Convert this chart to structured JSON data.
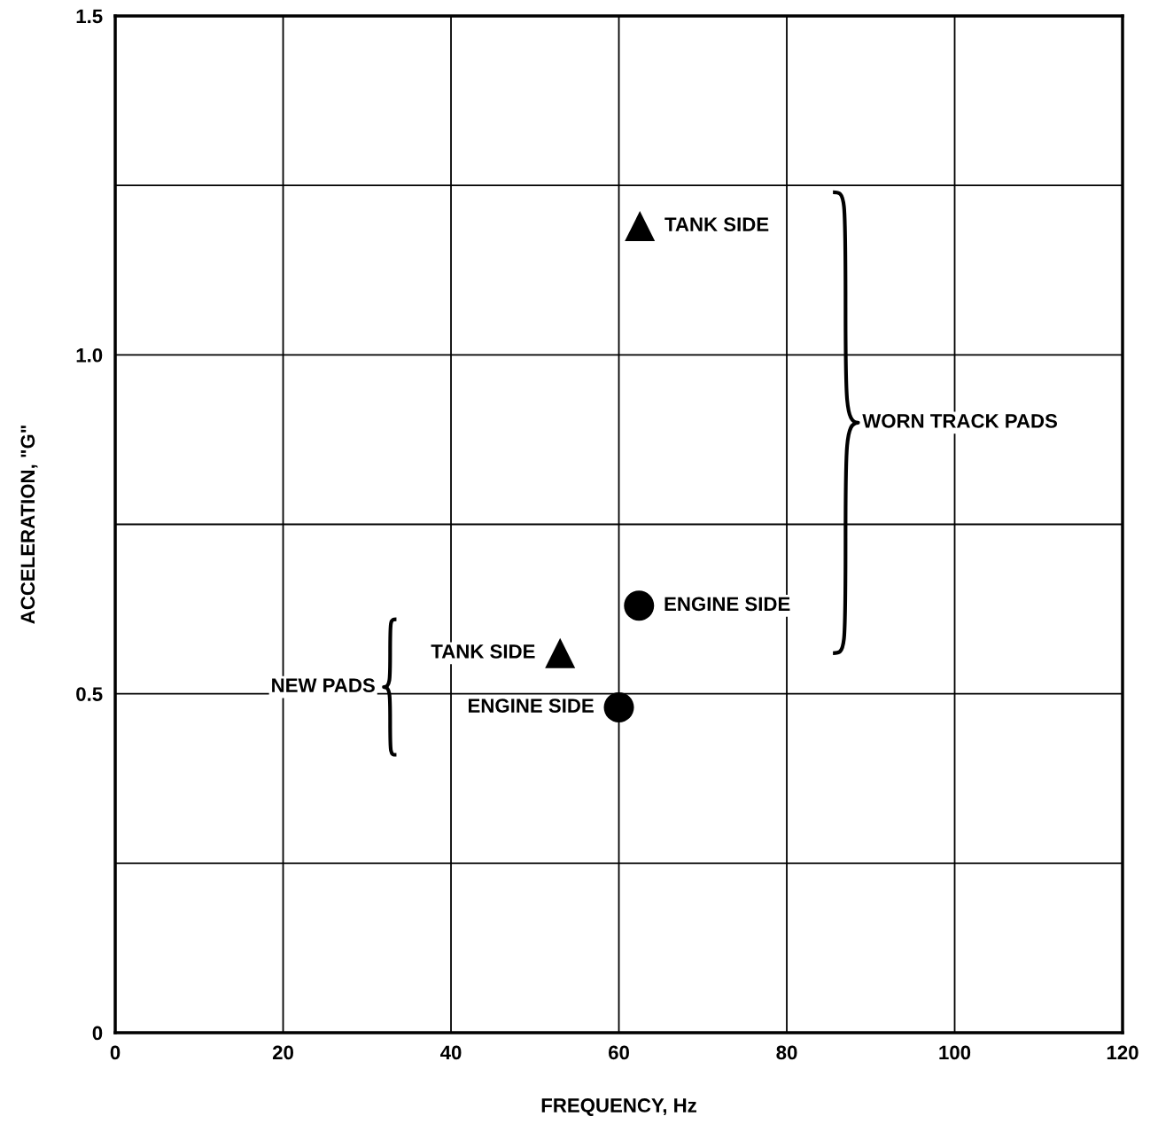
{
  "chart_data": {
    "type": "scatter",
    "xlabel": "FREQUENCY, Hz",
    "ylabel": "ACCELERATION, \"G\"",
    "xlim": [
      0,
      120
    ],
    "xticks": [
      0,
      20,
      40,
      60,
      80,
      100,
      120
    ],
    "ylim": [
      0,
      1.5
    ],
    "yticks": [
      0,
      {
        "value": 0.25,
        "label": null
      },
      {
        "value": 0.5,
        "label": "0.5"
      },
      {
        "value": 0.75,
        "label": null
      },
      {
        "value": 1.0,
        "label": "1.0"
      },
      {
        "value": 1.25,
        "label": null
      },
      {
        "value": 1.5,
        "label": "1.5"
      }
    ],
    "grid": true,
    "series": [
      {
        "marker": "triangle",
        "color": "#000000",
        "x": [
          62.5,
          53
        ],
        "values": [
          1.19,
          0.56
        ]
      },
      {
        "marker": "circle",
        "color": "#000000",
        "x": [
          62.4,
          60
        ],
        "values": [
          0.63,
          0.48
        ]
      }
    ],
    "annotations": [
      {
        "text": "TANK SIDE",
        "x": 62.5,
        "y": 1.19
      },
      {
        "text": "ENGINE SIDE",
        "x": 62.4,
        "y": 0.63
      },
      {
        "text": "TANK SIDE",
        "x": 53,
        "y": 0.56
      },
      {
        "text": "ENGINE SIDE",
        "x": 60,
        "y": 0.48
      },
      "WORN TRACK PADS",
      "NEW PADS"
    ]
  }
}
